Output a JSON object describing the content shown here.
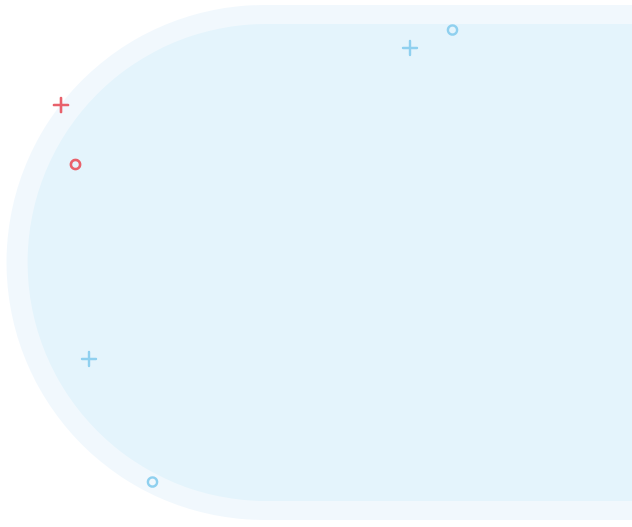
{
  "colors": {
    "background": "#ffffff",
    "outer_band": "#f1f8fd",
    "inner_panel": "#e4f4fc",
    "accent_red": "#e8616b",
    "accent_blue": "#8fd0ef"
  },
  "decorations": {
    "red": [
      "plus-icon",
      "ring-icon"
    ],
    "blue": [
      "plus-icon",
      "ring-icon",
      "plus-icon",
      "ring-icon"
    ]
  }
}
